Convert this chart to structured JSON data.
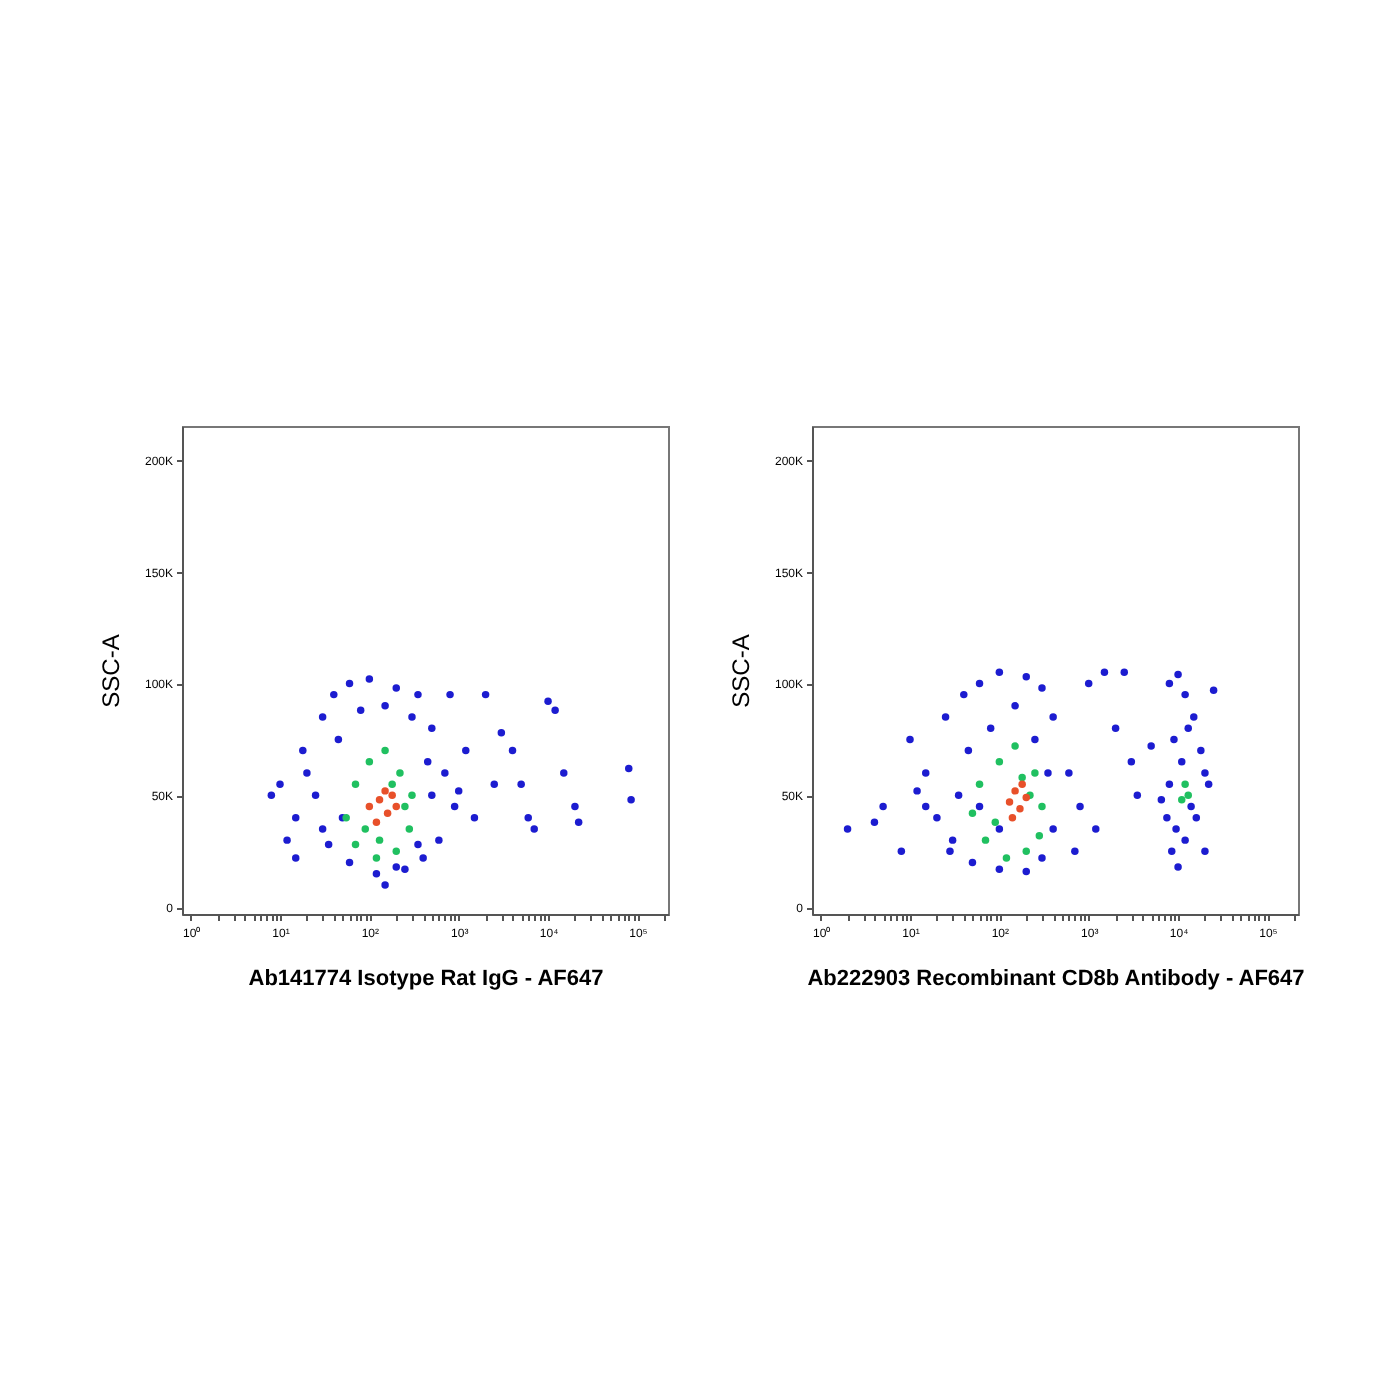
{
  "chart_data": [
    {
      "type": "scatter",
      "xlabel": "Ab141774 Isotype Rat IgG - AF647",
      "ylabel": "SSC-A",
      "log": "x",
      "marker": "circle",
      "xlim": [
        0.8,
        220000
      ],
      "ylim": [
        -3000,
        215000
      ],
      "xticks": [
        {
          "value": 1,
          "label": "10⁰"
        },
        {
          "value": 2,
          "label": null
        },
        {
          "value": 3,
          "label": null
        },
        {
          "value": 4,
          "label": null
        },
        {
          "value": 5,
          "label": null
        },
        {
          "value": 6,
          "label": null
        },
        {
          "value": 7,
          "label": null
        },
        {
          "value": 8,
          "label": null
        },
        {
          "value": 9,
          "label": null
        },
        {
          "value": 10,
          "label": "10¹"
        },
        {
          "value": 20,
          "label": null
        },
        {
          "value": 30,
          "label": null
        },
        {
          "value": 40,
          "label": null
        },
        {
          "value": 50,
          "label": null
        },
        {
          "value": 60,
          "label": null
        },
        {
          "value": 70,
          "label": null
        },
        {
          "value": 80,
          "label": null
        },
        {
          "value": 90,
          "label": null
        },
        {
          "value": 100,
          "label": "10²"
        },
        {
          "value": 200,
          "label": null
        },
        {
          "value": 300,
          "label": null
        },
        {
          "value": 400,
          "label": null
        },
        {
          "value": 500,
          "label": null
        },
        {
          "value": 600,
          "label": null
        },
        {
          "value": 700,
          "label": null
        },
        {
          "value": 800,
          "label": null
        },
        {
          "value": 900,
          "label": null
        },
        {
          "value": 1000,
          "label": "10³"
        },
        {
          "value": 2000,
          "label": null
        },
        {
          "value": 3000,
          "label": null
        },
        {
          "value": 4000,
          "label": null
        },
        {
          "value": 5000,
          "label": null
        },
        {
          "value": 6000,
          "label": null
        },
        {
          "value": 7000,
          "label": null
        },
        {
          "value": 8000,
          "label": null
        },
        {
          "value": 9000,
          "label": null
        },
        {
          "value": 10000,
          "label": "10⁴"
        },
        {
          "value": 20000,
          "label": null
        },
        {
          "value": 30000,
          "label": null
        },
        {
          "value": 40000,
          "label": null
        },
        {
          "value": 50000,
          "label": null
        },
        {
          "value": 60000,
          "label": null
        },
        {
          "value": 70000,
          "label": null
        },
        {
          "value": 80000,
          "label": null
        },
        {
          "value": 90000,
          "label": null
        },
        {
          "value": 100000,
          "label": "10⁵"
        },
        {
          "value": 200000,
          "label": null
        }
      ],
      "yticks": [
        0,
        {
          "value": 50000,
          "label": "50K"
        },
        {
          "value": 100000,
          "label": "100K"
        },
        {
          "value": 150000,
          "label": "150K"
        },
        {
          "value": 200000,
          "label": "200K"
        }
      ],
      "series": [
        {
          "color": "#1c1cd0",
          "x": [
            20,
            30,
            15,
            40,
            60,
            100,
            200,
            350,
            500,
            700,
            900,
            600,
            400,
            250,
            120,
            60,
            35,
            25,
            12,
            8,
            18,
            45,
            80,
            150,
            300,
            450,
            800,
            1000,
            1500,
            2000,
            3000,
            4000,
            5000,
            7000,
            10000,
            12000,
            15000,
            20000,
            22000,
            80000,
            85000,
            6000,
            2500,
            1200,
            50,
            30,
            15,
            10,
            200,
            500,
            350,
            150
          ],
          "values": [
            60000,
            85000,
            40000,
            95000,
            100000,
            102000,
            98000,
            95000,
            80000,
            60000,
            45000,
            30000,
            22000,
            17000,
            15000,
            20000,
            28000,
            50000,
            30000,
            50000,
            70000,
            75000,
            88000,
            90000,
            85000,
            65000,
            95000,
            52000,
            40000,
            95000,
            78000,
            70000,
            55000,
            35000,
            92000,
            88000,
            60000,
            45000,
            38000,
            62000,
            48000,
            40000,
            55000,
            70000,
            40000,
            35000,
            22000,
            55000,
            18000,
            50000,
            28000,
            10000
          ]
        },
        {
          "color": "#20c060",
          "x": [
            70,
            100,
            150,
            220,
            300,
            280,
            200,
            120,
            70,
            55,
            90,
            250,
            180,
            130
          ],
          "values": [
            55000,
            65000,
            70000,
            60000,
            50000,
            35000,
            25000,
            22000,
            28000,
            40000,
            35000,
            45000,
            55000,
            30000
          ]
        },
        {
          "color": "#e8502a",
          "x": [
            100,
            130,
            160,
            180,
            120,
            150,
            200
          ],
          "values": [
            45000,
            48000,
            42000,
            50000,
            38000,
            52000,
            45000
          ]
        }
      ]
    },
    {
      "type": "scatter",
      "xlabel": "Ab222903 Recombinant CD8b Antibody - AF647",
      "ylabel": "SSC-A",
      "log": "x",
      "marker": "circle",
      "xlim": [
        0.8,
        220000
      ],
      "ylim": [
        -3000,
        215000
      ],
      "xticks": [
        {
          "value": 1,
          "label": "10⁰"
        },
        {
          "value": 2,
          "label": null
        },
        {
          "value": 3,
          "label": null
        },
        {
          "value": 4,
          "label": null
        },
        {
          "value": 5,
          "label": null
        },
        {
          "value": 6,
          "label": null
        },
        {
          "value": 7,
          "label": null
        },
        {
          "value": 8,
          "label": null
        },
        {
          "value": 9,
          "label": null
        },
        {
          "value": 10,
          "label": "10¹"
        },
        {
          "value": 20,
          "label": null
        },
        {
          "value": 30,
          "label": null
        },
        {
          "value": 40,
          "label": null
        },
        {
          "value": 50,
          "label": null
        },
        {
          "value": 60,
          "label": null
        },
        {
          "value": 70,
          "label": null
        },
        {
          "value": 80,
          "label": null
        },
        {
          "value": 90,
          "label": null
        },
        {
          "value": 100,
          "label": "10²"
        },
        {
          "value": 200,
          "label": null
        },
        {
          "value": 300,
          "label": null
        },
        {
          "value": 400,
          "label": null
        },
        {
          "value": 500,
          "label": null
        },
        {
          "value": 600,
          "label": null
        },
        {
          "value": 700,
          "label": null
        },
        {
          "value": 800,
          "label": null
        },
        {
          "value": 900,
          "label": null
        },
        {
          "value": 1000,
          "label": "10³"
        },
        {
          "value": 2000,
          "label": null
        },
        {
          "value": 3000,
          "label": null
        },
        {
          "value": 4000,
          "label": null
        },
        {
          "value": 5000,
          "label": null
        },
        {
          "value": 6000,
          "label": null
        },
        {
          "value": 7000,
          "label": null
        },
        {
          "value": 8000,
          "label": null
        },
        {
          "value": 9000,
          "label": null
        },
        {
          "value": 10000,
          "label": "10⁴"
        },
        {
          "value": 20000,
          "label": null
        },
        {
          "value": 30000,
          "label": null
        },
        {
          "value": 40000,
          "label": null
        },
        {
          "value": 50000,
          "label": null
        },
        {
          "value": 60000,
          "label": null
        },
        {
          "value": 70000,
          "label": null
        },
        {
          "value": 80000,
          "label": null
        },
        {
          "value": 90000,
          "label": null
        },
        {
          "value": 100000,
          "label": "10⁵"
        },
        {
          "value": 200000,
          "label": null
        }
      ],
      "yticks": [
        0,
        {
          "value": 50000,
          "label": "50K"
        },
        {
          "value": 100000,
          "label": "100K"
        },
        {
          "value": 150000,
          "label": "150K"
        },
        {
          "value": 200000,
          "label": "200K"
        }
      ],
      "series": [
        {
          "color": "#1c1cd0",
          "x": [
            10,
            15,
            20,
            30,
            25,
            40,
            60,
            100,
            200,
            300,
            400,
            350,
            400,
            300,
            200,
            100,
            50,
            35,
            5,
            4,
            2,
            8,
            12,
            45,
            80,
            150,
            250,
            600,
            800,
            1000,
            1500,
            2500,
            2000,
            3000,
            1200,
            700,
            3500,
            5000,
            60,
            28,
            15,
            100,
            8000,
            10000,
            12000,
            15000,
            18000,
            20000,
            22000,
            25000,
            9000,
            8000,
            7500,
            8500,
            10000,
            12000,
            14000,
            16000,
            11000,
            13000,
            20000,
            9500,
            6500
          ],
          "values": [
            75000,
            60000,
            40000,
            30000,
            85000,
            95000,
            100000,
            105000,
            103000,
            98000,
            85000,
            60000,
            35000,
            22000,
            16000,
            17000,
            20000,
            50000,
            45000,
            38000,
            35000,
            25000,
            52000,
            70000,
            80000,
            90000,
            75000,
            60000,
            45000,
            100000,
            105000,
            105000,
            80000,
            65000,
            35000,
            25000,
            50000,
            72000,
            45000,
            25000,
            45000,
            35000,
            100000,
            104000,
            95000,
            85000,
            70000,
            60000,
            55000,
            97000,
            75000,
            55000,
            40000,
            25000,
            18000,
            30000,
            45000,
            40000,
            65000,
            80000,
            25000,
            35000,
            48000
          ]
        },
        {
          "color": "#20c060",
          "x": [
            60,
            100,
            150,
            250,
            300,
            280,
            200,
            120,
            70,
            50,
            90,
            220,
            180,
            12000,
            13000,
            11000
          ],
          "values": [
            55000,
            65000,
            72000,
            60000,
            45000,
            32000,
            25000,
            22000,
            30000,
            42000,
            38000,
            50000,
            58000,
            55000,
            50000,
            48000
          ]
        },
        {
          "color": "#e8502a",
          "x": [
            130,
            150,
            170,
            200,
            140,
            180
          ],
          "values": [
            47000,
            52000,
            44000,
            49000,
            40000,
            55000
          ]
        }
      ]
    }
  ]
}
